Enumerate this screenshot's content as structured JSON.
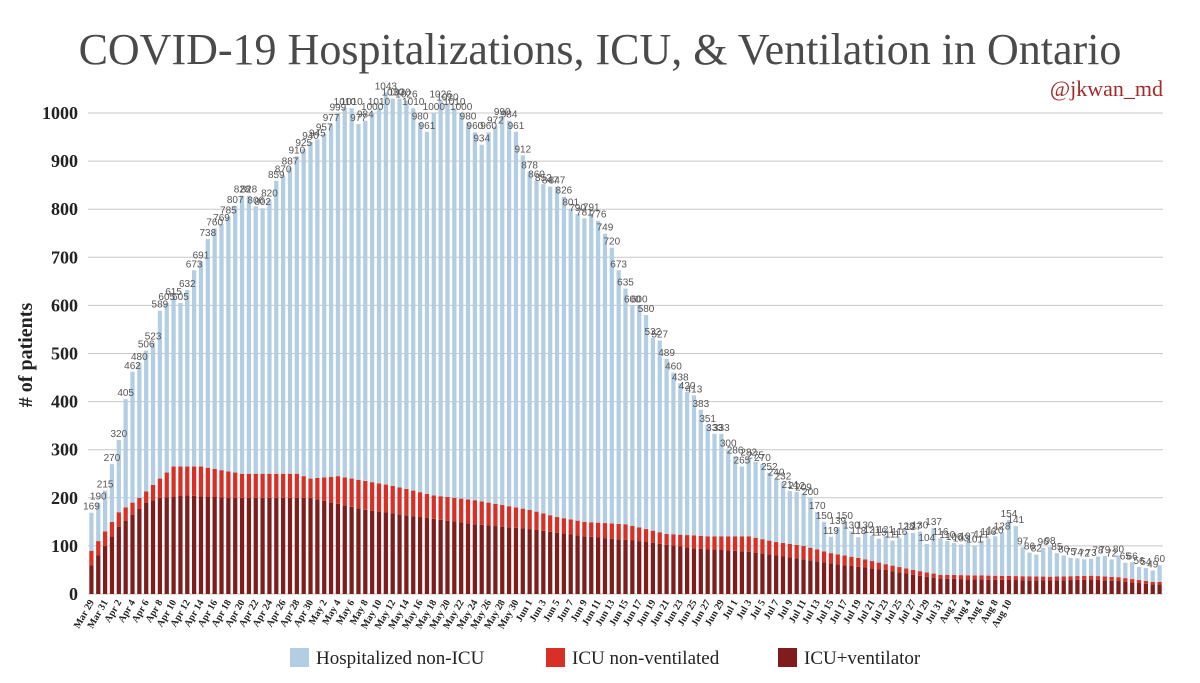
{
  "chart_data": {
    "type": "bar",
    "stacked": true,
    "title": "COVID-19 Hospitalizations, ICU, & Ventilation in Ontario",
    "handle": "@jkwan_md",
    "ylabel": "# of patients",
    "ylim": [
      0,
      1000
    ],
    "yticks": [
      0,
      100,
      200,
      300,
      400,
      500,
      600,
      700,
      800,
      900,
      1000
    ],
    "grid": true,
    "legend_position": "bottom",
    "start_date": "2020-03-29",
    "xtick_labels": [
      "Mar 29",
      "Mar 31",
      "Apr 2",
      "Apr 4",
      "Apr 6",
      "Apr 8",
      "Apr 10",
      "Apr 12",
      "Apr 14",
      "Apr 16",
      "Apr 18",
      "Apr 20",
      "Apr 22",
      "Apr 24",
      "Apr 26",
      "Apr 28",
      "Apr 30",
      "May 2",
      "May 4",
      "May 6",
      "May 8",
      "May 10",
      "May 12",
      "May 14",
      "May 16",
      "May 18",
      "May 20",
      "May 22",
      "May 24",
      "May 26",
      "May 28",
      "May 30",
      "Jun 1",
      "Jun 3",
      "Jun 5",
      "Jun 7",
      "Jun 9",
      "Jun 11",
      "Jun 13",
      "Jun 15",
      "Jun 17",
      "Jun 19",
      "Jun 21",
      "Jun 23",
      "Jun 25",
      "Jun 27",
      "Jun 29",
      "Jul 1",
      "Jul 3",
      "Jul 5",
      "Jul 7",
      "Jul 9",
      "Jul 11",
      "Jul 13",
      "Jul 15",
      "Jul 17",
      "Jul 19",
      "Jul 21",
      "Jul 23",
      "Jul 25",
      "Jul 27",
      "Jul 29",
      "Jul 31",
      "Aug 2",
      "Aug 4",
      "Aug 6",
      "Aug 8",
      "Aug 10"
    ],
    "totals": [
      169,
      190,
      215,
      270,
      320,
      405,
      462,
      480,
      506,
      523,
      589,
      605,
      615,
      605,
      632,
      673,
      691,
      738,
      760,
      769,
      785,
      807,
      828,
      828,
      806,
      802,
      820,
      859,
      870,
      887,
      910,
      925,
      940,
      945,
      957,
      977,
      999,
      1010,
      1010,
      977,
      984,
      1000,
      1010,
      1043,
      1030,
      1030,
      1026,
      1010,
      980,
      961,
      1000,
      1026,
      1020,
      1010,
      1000,
      980,
      960,
      934,
      960,
      972,
      990,
      984,
      961,
      912,
      878,
      860,
      852,
      847,
      847,
      826,
      801,
      790,
      781,
      791,
      776,
      749,
      720,
      673,
      635,
      600,
      600,
      580,
      532,
      527,
      489,
      460,
      438,
      420,
      413,
      383,
      351,
      333,
      333,
      300,
      286,
      265,
      282,
      275,
      270,
      252,
      240,
      232,
      214,
      212,
      209,
      200,
      170,
      150,
      119,
      139,
      150,
      130,
      118,
      130,
      121,
      115,
      121,
      111,
      116,
      128,
      127,
      130,
      104,
      137,
      116,
      110,
      106,
      103,
      107,
      101,
      111,
      116,
      120,
      128,
      154,
      141,
      97,
      86,
      82,
      96,
      98,
      85,
      80,
      75,
      74,
      72,
      73,
      78,
      79,
      72,
      80,
      65,
      66,
      56,
      54,
      49,
      60
    ],
    "series": [
      {
        "name": "Hospitalized non-ICU",
        "color": "#b3cde3"
      },
      {
        "name": "ICU non-ventilated",
        "color": "#d73027"
      },
      {
        "name": "ICU+ventilator",
        "color": "#7f1d1d"
      }
    ],
    "icu_total_keyframes": [
      [
        0,
        90
      ],
      [
        4,
        170
      ],
      [
        7,
        200
      ],
      [
        10,
        240
      ],
      [
        12,
        265
      ],
      [
        16,
        265
      ],
      [
        22,
        250
      ],
      [
        26,
        250
      ],
      [
        30,
        250
      ],
      [
        32,
        240
      ],
      [
        36,
        245
      ],
      [
        44,
        225
      ],
      [
        50,
        205
      ],
      [
        56,
        195
      ],
      [
        60,
        185
      ],
      [
        64,
        175
      ],
      [
        68,
        160
      ],
      [
        72,
        150
      ],
      [
        78,
        145
      ],
      [
        84,
        125
      ],
      [
        90,
        120
      ],
      [
        96,
        120
      ],
      [
        100,
        108
      ],
      [
        104,
        100
      ],
      [
        108,
        85
      ],
      [
        112,
        75
      ],
      [
        116,
        62
      ],
      [
        120,
        50
      ],
      [
        124,
        40
      ],
      [
        132,
        38
      ],
      [
        140,
        36
      ],
      [
        146,
        38
      ],
      [
        150,
        35
      ],
      [
        155,
        25
      ]
    ],
    "vent_keyframes": [
      [
        0,
        60
      ],
      [
        4,
        140
      ],
      [
        8,
        190
      ],
      [
        10,
        200
      ],
      [
        14,
        205
      ],
      [
        20,
        200
      ],
      [
        32,
        200
      ],
      [
        40,
        175
      ],
      [
        48,
        160
      ],
      [
        56,
        145
      ],
      [
        64,
        135
      ],
      [
        72,
        120
      ],
      [
        80,
        110
      ],
      [
        88,
        95
      ],
      [
        96,
        88
      ],
      [
        104,
        72
      ],
      [
        110,
        60
      ],
      [
        116,
        50
      ],
      [
        120,
        40
      ],
      [
        124,
        32
      ],
      [
        130,
        30
      ],
      [
        140,
        28
      ],
      [
        146,
        30
      ],
      [
        150,
        27
      ],
      [
        155,
        20
      ]
    ]
  }
}
